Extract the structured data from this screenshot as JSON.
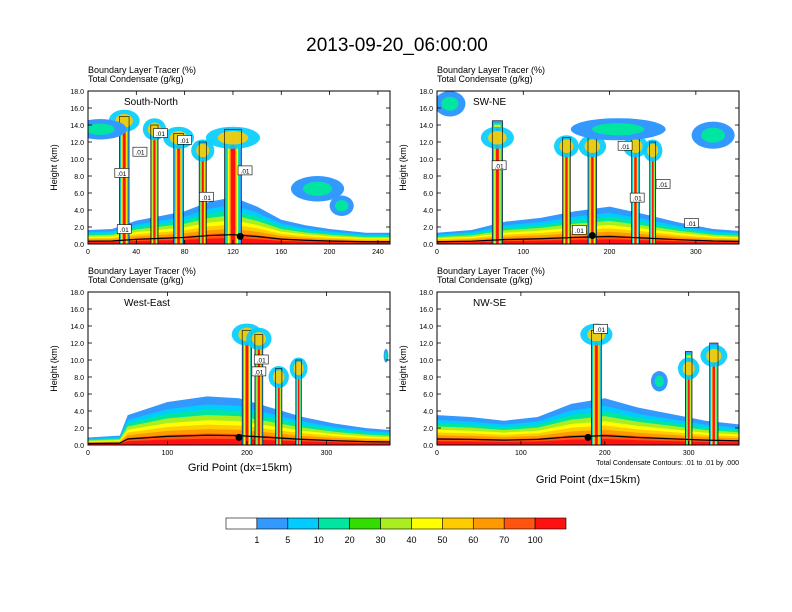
{
  "title": "2013-09-20_06:00:00",
  "labels": {
    "tracer": "Boundary Layer Tracer   (%)",
    "condensate": "Total Condensate   (g/kg)",
    "ylabel": "Height (km)",
    "xlabel": "Grid Point (dx=15km)",
    "contour_note": "Total Condensate Contours: .01 to .01 by .000",
    "contour_tag": ".01"
  },
  "colorbar": {
    "colors": [
      "#ffffff",
      "#3399ff",
      "#00ccff",
      "#00e6a0",
      "#33dd00",
      "#aaee22",
      "#ffff00",
      "#ffcc00",
      "#ff9900",
      "#ff5511",
      "#ff1111"
    ],
    "labels": [
      "1",
      "5",
      "10",
      "20",
      "30",
      "40",
      "50",
      "60",
      "70",
      "100"
    ]
  },
  "chart_data": [
    {
      "type": "heatmap",
      "name": "South-North",
      "xlim": [
        0,
        250
      ],
      "ylim": [
        0,
        18
      ],
      "xticks": [
        "0",
        "40",
        "80",
        "120",
        "160",
        "200",
        "240"
      ],
      "yticks": [
        "0.0",
        "2.0",
        "4.0",
        "6.0",
        "8.0",
        "10.0",
        "12.0",
        "14.0",
        "16.0",
        "18.0"
      ],
      "xvals": [
        0,
        40,
        80,
        120,
        160,
        200,
        240
      ],
      "bl_top": [
        [
          0,
          1.5
        ],
        [
          20,
          1.6
        ],
        [
          40,
          2.5
        ],
        [
          60,
          3.0
        ],
        [
          80,
          3.5
        ],
        [
          100,
          4.5
        ],
        [
          120,
          5.0
        ],
        [
          140,
          4.0
        ],
        [
          160,
          2.6
        ],
        [
          180,
          2.0
        ],
        [
          200,
          1.6
        ],
        [
          230,
          1.2
        ],
        [
          250,
          1.2
        ]
      ],
      "columns": [
        [
          30,
          8,
          15,
          14.5
        ],
        [
          55,
          6,
          14,
          13.5
        ],
        [
          75,
          8,
          13,
          12.5
        ],
        [
          95,
          6,
          12,
          11
        ],
        [
          120,
          14,
          13.5,
          12.5
        ]
      ],
      "clouds": [
        [
          10,
          13.5,
          22,
          1.2
        ],
        [
          190,
          6.5,
          22,
          1.5
        ],
        [
          210,
          4.5,
          10,
          1.2
        ]
      ],
      "marker": [
        126,
        0.9
      ],
      "tags": [
        [
          28,
          8.3
        ],
        [
          43,
          10.8
        ],
        [
          60,
          13.0
        ],
        [
          80,
          12.2
        ],
        [
          98,
          5.5
        ],
        [
          130,
          8.6
        ],
        [
          30,
          1.7
        ]
      ]
    },
    {
      "type": "heatmap",
      "name": "SW-NE",
      "xlim": [
        0,
        350
      ],
      "ylim": [
        0,
        18
      ],
      "xticks": [
        "0",
        "100",
        "200",
        "300"
      ],
      "yticks": [
        "0.0",
        "2.0",
        "4.0",
        "6.0",
        "8.0",
        "10.0",
        "12.0",
        "14.0",
        "16.0",
        "18.0"
      ],
      "xvals": [
        0,
        100,
        200,
        300
      ],
      "bl_top": [
        [
          0,
          1.2
        ],
        [
          40,
          1.5
        ],
        [
          80,
          2.4
        ],
        [
          120,
          2.8
        ],
        [
          160,
          3.5
        ],
        [
          200,
          4.0
        ],
        [
          240,
          3.2
        ],
        [
          280,
          2.3
        ],
        [
          320,
          1.6
        ],
        [
          350,
          1.4
        ]
      ],
      "columns": [
        [
          70,
          12,
          14.5,
          12.5
        ],
        [
          150,
          9,
          12.5,
          11.5
        ],
        [
          180,
          10,
          12.5,
          11.5
        ],
        [
          230,
          9,
          12.5,
          11.5
        ],
        [
          250,
          7,
          12,
          11
        ]
      ],
      "clouds": [
        [
          15,
          16.5,
          18,
          1.5
        ],
        [
          210,
          13.5,
          55,
          1.3
        ],
        [
          320,
          12.8,
          25,
          1.6
        ]
      ],
      "marker": [
        180,
        1.0
      ],
      "tags": [
        [
          72,
          9.2
        ],
        [
          218,
          11.5
        ],
        [
          262,
          7.0
        ],
        [
          232,
          5.4
        ],
        [
          165,
          1.6
        ],
        [
          295,
          2.4
        ]
      ]
    },
    {
      "type": "heatmap",
      "name": "West-East",
      "xlim": [
        0,
        380
      ],
      "ylim": [
        0,
        18
      ],
      "xticks": [
        "0",
        "100",
        "200",
        "300"
      ],
      "yticks": [
        "0.0",
        "2.0",
        "4.0",
        "6.0",
        "8.0",
        "10.0",
        "12.0",
        "14.0",
        "16.0",
        "18.0"
      ],
      "xvals": [
        0,
        100,
        200,
        300
      ],
      "bl_top": [
        [
          0,
          0.8
        ],
        [
          40,
          1.0
        ],
        [
          50,
          3.2
        ],
        [
          100,
          4.6
        ],
        [
          150,
          5.2
        ],
        [
          190,
          5.0
        ],
        [
          230,
          4.0
        ],
        [
          270,
          3.0
        ],
        [
          310,
          2.3
        ],
        [
          350,
          1.8
        ],
        [
          380,
          1.6
        ]
      ],
      "columns": [
        [
          200,
          12,
          13.5,
          13
        ],
        [
          215,
          10,
          13,
          12.5
        ],
        [
          240,
          8,
          9,
          8
        ],
        [
          265,
          7,
          10,
          9
        ]
      ],
      "clouds": [
        [
          375,
          10.5,
          3,
          0.8
        ]
      ],
      "marker": [
        190,
        0.9
      ],
      "tags": [
        [
          218,
          10.0
        ],
        [
          215,
          8.6
        ]
      ]
    },
    {
      "type": "heatmap",
      "name": "NW-SE",
      "xlim": [
        0,
        360
      ],
      "ylim": [
        0,
        18
      ],
      "xticks": [
        "0",
        "100",
        "200",
        "300"
      ],
      "yticks": [
        "0.0",
        "2.0",
        "4.0",
        "6.0",
        "8.0",
        "10.0",
        "12.0",
        "14.0",
        "16.0",
        "18.0"
      ],
      "xvals": [
        0,
        100,
        200,
        300
      ],
      "bl_top": [
        [
          0,
          3.2
        ],
        [
          40,
          3.0
        ],
        [
          80,
          2.6
        ],
        [
          120,
          3.0
        ],
        [
          160,
          4.4
        ],
        [
          200,
          5.0
        ],
        [
          240,
          4.0
        ],
        [
          280,
          3.3
        ],
        [
          320,
          2.6
        ],
        [
          360,
          2.2
        ]
      ],
      "columns": [
        [
          190,
          12,
          13.5,
          13
        ],
        [
          300,
          8,
          11,
          9
        ],
        [
          330,
          10,
          12,
          10.5
        ]
      ],
      "clouds": [
        [
          265,
          7.5,
          10,
          1.2
        ]
      ],
      "marker": [
        180,
        0.9
      ],
      "tags": [
        [
          195,
          13.6
        ]
      ]
    }
  ]
}
